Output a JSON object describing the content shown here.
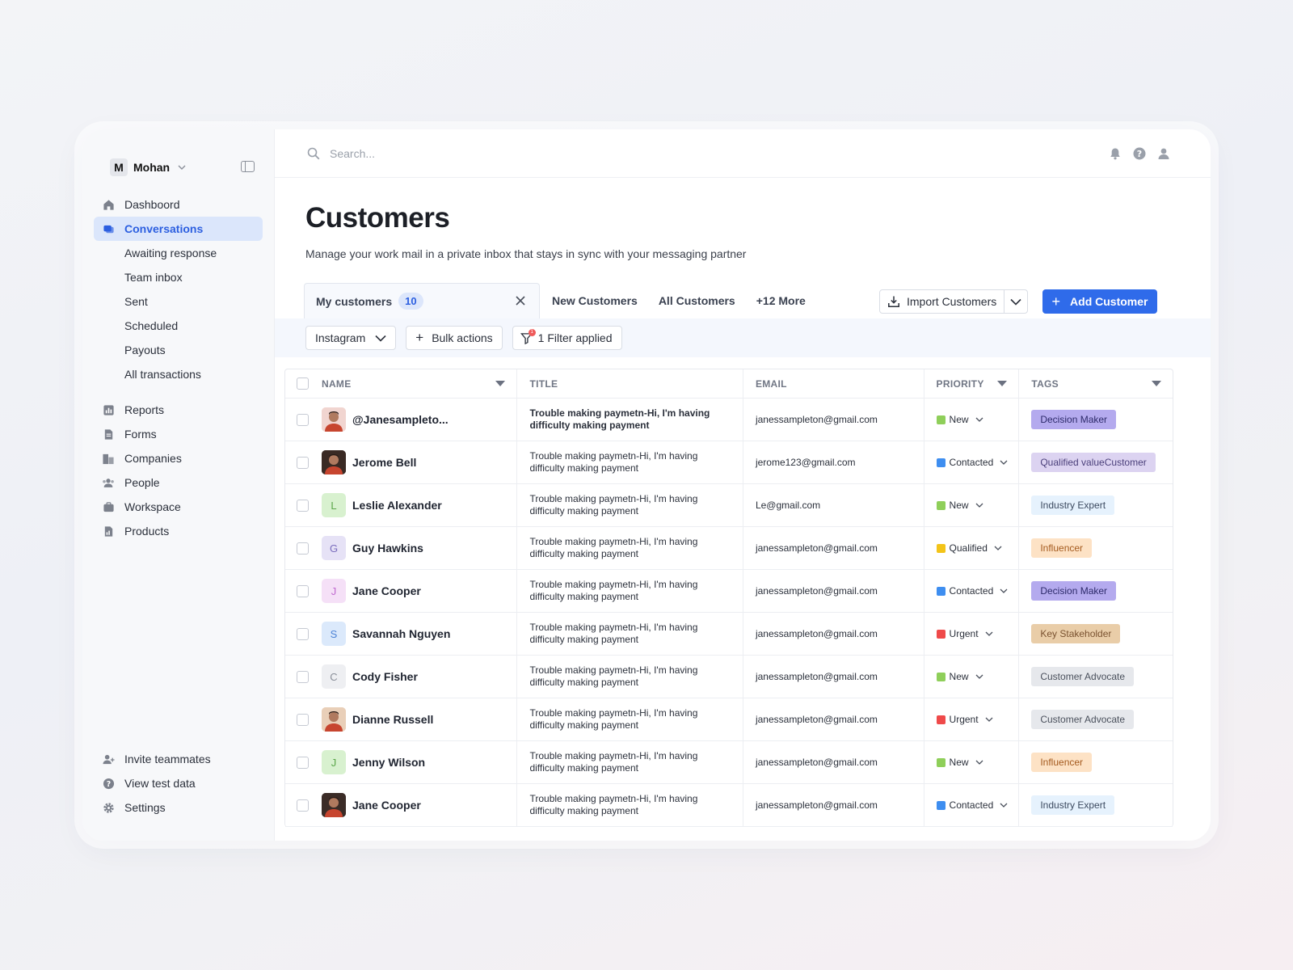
{
  "workspace": {
    "initial": "M",
    "name": "Mohan"
  },
  "nav": {
    "primary": [
      {
        "id": "dashboard",
        "label": "Dashboord",
        "icon": "home-icon",
        "active": false
      },
      {
        "id": "conversations",
        "label": "Conversations",
        "icon": "chat-icon",
        "active": true
      }
    ],
    "sub": [
      "Awaiting response",
      "Team inbox",
      "Sent",
      "Scheduled",
      "Payouts",
      "All transactions"
    ],
    "secondary": [
      {
        "id": "reports",
        "label": "Reports",
        "icon": "chart-icon"
      },
      {
        "id": "forms",
        "label": "Forms",
        "icon": "document-icon"
      },
      {
        "id": "companies",
        "label": "Companies",
        "icon": "building-icon"
      },
      {
        "id": "people",
        "label": "People",
        "icon": "people-icon"
      },
      {
        "id": "workspace",
        "label": "Workspace",
        "icon": "briefcase-icon"
      },
      {
        "id": "products",
        "label": "Products",
        "icon": "product-icon"
      }
    ],
    "bottom": [
      {
        "id": "invite",
        "label": "Invite teammates",
        "icon": "user-plus-icon"
      },
      {
        "id": "test-data",
        "label": "View test data",
        "icon": "help-icon"
      },
      {
        "id": "settings",
        "label": "Settings",
        "icon": "gear-icon"
      }
    ]
  },
  "search": {
    "placeholder": "Search..."
  },
  "page": {
    "title": "Customers",
    "subtitle": "Manage your work mail in a private inbox that stays in sync with your messaging  partner"
  },
  "tabs": {
    "active": {
      "label": "My customers",
      "count": "10"
    },
    "others": [
      "New Customers",
      "All Customers",
      "+12 More"
    ]
  },
  "actions": {
    "import": "Import Customers",
    "add": "Add Customer"
  },
  "filters": {
    "source": "Instagram",
    "bulk": "Bulk actions",
    "applied": "1 Filter applied",
    "applied_count": "1"
  },
  "table": {
    "headers": {
      "name": "NAME",
      "title": "TITLE",
      "email": "EMAIL",
      "priority": "PRIORITY",
      "tags": "TAGS"
    },
    "priority_colors": {
      "New": "#8fcf5a",
      "Contacted": "#3e8ef0",
      "Qualified": "#f3c419",
      "Urgent": "#ef4a4a"
    },
    "rows": [
      {
        "name": "@Janesampleto...",
        "avatar": "photo",
        "avatar_bg": "#f1d5d0",
        "title": "Trouble making paymetn-Hi, I'm having difficulty making payment",
        "title_bold": true,
        "email": "janessampleton@gmail.com",
        "priority": "New",
        "tag": "Decision Maker",
        "tag_bg": "#b4aaee",
        "tag_fg": "#2d2a6a"
      },
      {
        "name": "Jerome Bell",
        "avatar": "photo",
        "avatar_bg": "#3a2a24",
        "title": "Trouble making paymetn-Hi, I'm having difficulty making payment",
        "title_bold": false,
        "email": "jerome123@gmail.com",
        "priority": "Contacted",
        "tag": "Qualified valueCustomer",
        "tag_bg": "#dcd3f1",
        "tag_fg": "#4a3f7a"
      },
      {
        "name": "Leslie Alexander",
        "avatar": "L",
        "avatar_bg": "#d8f1cf",
        "avatar_fg": "#5aa64a",
        "title": "Trouble making paymetn-Hi, I'm having difficulty making payment",
        "title_bold": false,
        "email": "Le@gmail.com",
        "priority": "New",
        "tag": "Industry Expert",
        "tag_bg": "#e6f2fd",
        "tag_fg": "#3c4a60"
      },
      {
        "name": "Guy Hawkins",
        "avatar": "G",
        "avatar_bg": "#e6e2f6",
        "avatar_fg": "#7a6dbd",
        "title": "Trouble making paymetn-Hi, I'm having difficulty making payment",
        "title_bold": false,
        "email": "janessampleton@gmail.com",
        "priority": "Qualified",
        "tag": "Influencer",
        "tag_bg": "#fde2c5",
        "tag_fg": "#a45a1e"
      },
      {
        "name": "Jane Cooper",
        "avatar": "J",
        "avatar_bg": "#f5e0f7",
        "avatar_fg": "#c06ad0",
        "title": "Trouble making paymetn-Hi, I'm having difficulty making payment",
        "title_bold": false,
        "email": "janessampleton@gmail.com",
        "priority": "Contacted",
        "tag": "Decision Maker",
        "tag_bg": "#b4aaee",
        "tag_fg": "#2d2a6a"
      },
      {
        "name": "Savannah Nguyen",
        "avatar": "S",
        "avatar_bg": "#dbe9fb",
        "avatar_fg": "#4d83d6",
        "title": "Trouble making paymetn-Hi, I'm having difficulty making payment",
        "title_bold": false,
        "email": "janessampleton@gmail.com",
        "priority": "Urgent",
        "tag": "Key Stakeholder",
        "tag_bg": "#e9cda8",
        "tag_fg": "#7a5230"
      },
      {
        "name": "Cody Fisher",
        "avatar": "C",
        "avatar_bg": "#eeeff2",
        "avatar_fg": "#8a8f99",
        "title": "Trouble making paymetn-Hi, I'm having difficulty making payment",
        "title_bold": false,
        "email": "janessampleton@gmail.com",
        "priority": "New",
        "tag": "Customer Advocate",
        "tag_bg": "#e6e8ec",
        "tag_fg": "#4a505c"
      },
      {
        "name": "Dianne Russell",
        "avatar": "photo",
        "avatar_bg": "#e9cfb8",
        "title": "Trouble making paymetn-Hi, I'm having difficulty making payment",
        "title_bold": false,
        "email": "janessampleton@gmail.com",
        "priority": "Urgent",
        "tag": "Customer Advocate",
        "tag_bg": "#e6e8ec",
        "tag_fg": "#4a505c"
      },
      {
        "name": "Jenny Wilson",
        "avatar": "J",
        "avatar_bg": "#d8f1cf",
        "avatar_fg": "#5aa64a",
        "title": "Trouble making paymetn-Hi, I'm having difficulty making payment",
        "title_bold": false,
        "email": "janessampleton@gmail.com",
        "priority": "New",
        "tag": "Influencer",
        "tag_bg": "#fde2c5",
        "tag_fg": "#a45a1e"
      },
      {
        "name": "Jane Cooper",
        "avatar": "photo",
        "avatar_bg": "#3b2c27",
        "title": "Trouble making paymetn-Hi, I'm having difficulty making payment",
        "title_bold": false,
        "email": "janessampleton@gmail.com",
        "priority": "Contacted",
        "tag": "Industry Expert",
        "tag_bg": "#e6f2fd",
        "tag_fg": "#3c4a60"
      }
    ]
  },
  "colors": {
    "accent": "#2f6bea",
    "active_nav_bg": "#dbe6fb",
    "filterbar_bg": "#f4f7fd"
  }
}
